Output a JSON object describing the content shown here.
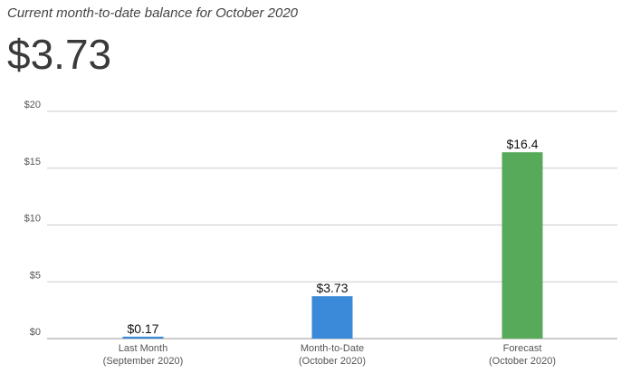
{
  "header": {
    "subtitle": "Current month-to-date balance for October 2020",
    "balance": "$3.73"
  },
  "chart_data": {
    "type": "bar",
    "categories": [
      [
        "Last Month",
        "(September 2020)"
      ],
      [
        "Month-to-Date",
        "(October 2020)"
      ],
      [
        "Forecast",
        "(October 2020)"
      ]
    ],
    "values": [
      0.17,
      3.73,
      16.4
    ],
    "data_labels": [
      "$0.17",
      "$3.73",
      "$16.4"
    ],
    "colors": [
      "#3b8ad9",
      "#3b8ad9",
      "#58aa5b"
    ],
    "y_ticks": [
      0,
      5,
      10,
      15,
      20
    ],
    "y_tick_labels": [
      "$0",
      "$5",
      "$10",
      "$15",
      "$20"
    ],
    "ylim": [
      0,
      20
    ],
    "grid": true,
    "legend": "none"
  }
}
